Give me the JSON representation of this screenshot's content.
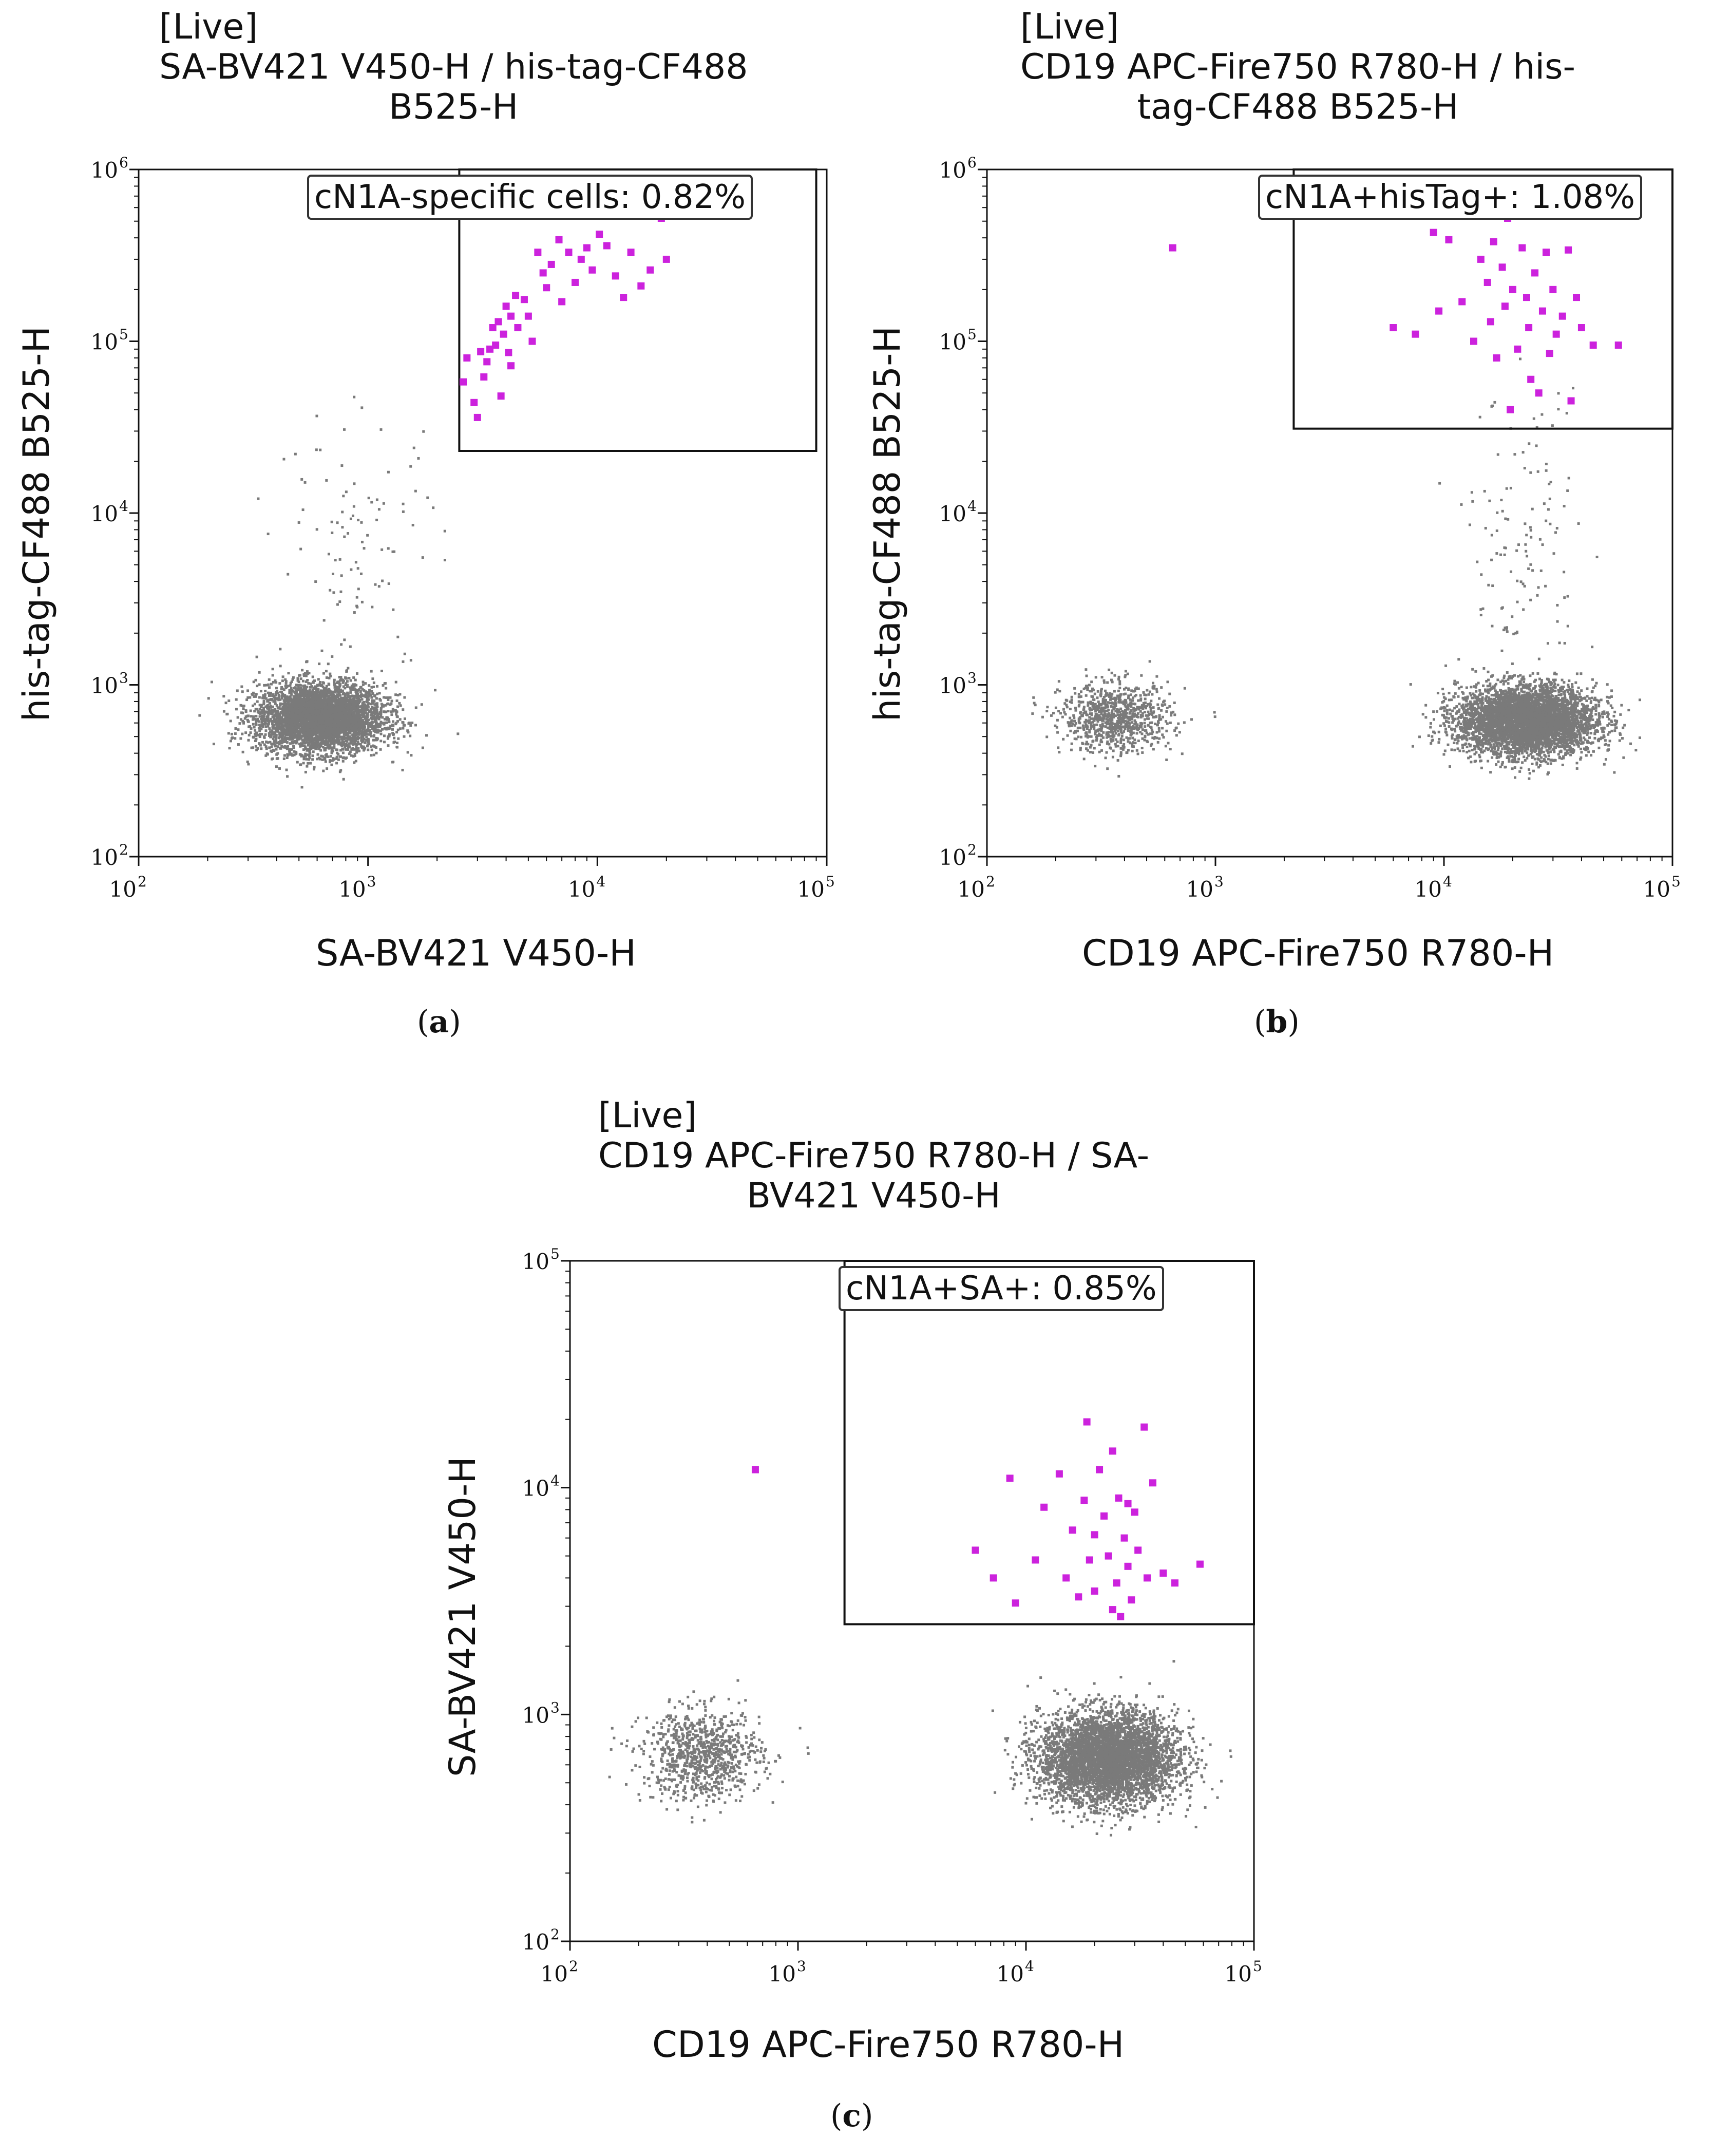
{
  "chart_data": [
    {
      "type": "scatter",
      "panel_label": "a",
      "title": [
        "[Live]",
        "SA-BV421 V450-H / his-tag-CF488",
        "B525-H"
      ],
      "xlabel": "SA-BV421 V450-H",
      "ylabel": "his-tag-CF488 B525-H",
      "x_scale": "log",
      "y_scale": "log",
      "xlim": [
        100,
        100000
      ],
      "ylim": [
        100,
        1000000
      ],
      "x_ticks": [
        "10",
        "10",
        "10",
        "10"
      ],
      "x_tick_exp": [
        "2",
        "3",
        "4",
        "5"
      ],
      "y_ticks": [
        "10",
        "10",
        "10",
        "10",
        "10"
      ],
      "y_tick_exp": [
        "2",
        "3",
        "4",
        "5",
        "6"
      ],
      "gate": {
        "label": "cN1A-specific cells: 0.82%",
        "x_range": [
          2500,
          90000
        ],
        "y_range": [
          23000,
          1000000
        ]
      },
      "colors": {
        "background_events": "#7a7a7a",
        "gated_events": "#cc22dd"
      },
      "populations": [
        {
          "center": [
            620,
            640
          ],
          "spread": [
            0.14,
            0.1
          ],
          "count": 4200
        },
        {
          "center": [
            900,
            6000
          ],
          "spread": [
            0.18,
            0.4
          ],
          "count": 110
        }
      ],
      "gated_points": [
        [
          2600,
          58000
        ],
        [
          2700,
          80000
        ],
        [
          2900,
          44000
        ],
        [
          3000,
          36000
        ],
        [
          3100,
          87000
        ],
        [
          3200,
          62000
        ],
        [
          3300,
          76000
        ],
        [
          3500,
          120000
        ],
        [
          3600,
          95000
        ],
        [
          3700,
          130000
        ],
        [
          3800,
          48000
        ],
        [
          3900,
          110000
        ],
        [
          4000,
          160000
        ],
        [
          4100,
          86000
        ],
        [
          4200,
          140000
        ],
        [
          4400,
          185000
        ],
        [
          4500,
          120000
        ],
        [
          4800,
          175000
        ],
        [
          5000,
          140000
        ],
        [
          5200,
          100000
        ],
        [
          5500,
          330000
        ],
        [
          5800,
          250000
        ],
        [
          6000,
          205000
        ],
        [
          6300,
          280000
        ],
        [
          6800,
          390000
        ],
        [
          7000,
          170000
        ],
        [
          7500,
          330000
        ],
        [
          8000,
          220000
        ],
        [
          8500,
          300000
        ],
        [
          9000,
          350000
        ],
        [
          9500,
          260000
        ],
        [
          10200,
          420000
        ],
        [
          11000,
          360000
        ],
        [
          12000,
          240000
        ],
        [
          13000,
          180000
        ],
        [
          14000,
          330000
        ],
        [
          15500,
          210000
        ],
        [
          17000,
          260000
        ],
        [
          19000,
          520000
        ],
        [
          20000,
          300000
        ],
        [
          4200,
          72000
        ],
        [
          3400,
          90000
        ]
      ]
    },
    {
      "type": "scatter",
      "panel_label": "b",
      "title": [
        "[Live]",
        "CD19 APC-Fire750 R780-H / his-",
        "tag-CF488 B525-H"
      ],
      "xlabel": "CD19 APC-Fire750 R780-H",
      "ylabel": "his-tag-CF488 B525-H",
      "x_scale": "log",
      "y_scale": "log",
      "xlim": [
        100,
        100000
      ],
      "ylim": [
        100,
        1000000
      ],
      "x_ticks": [
        "10",
        "10",
        "10",
        "10"
      ],
      "x_tick_exp": [
        "2",
        "3",
        "4",
        "5"
      ],
      "y_ticks": [
        "10",
        "10",
        "10",
        "10",
        "10"
      ],
      "y_tick_exp": [
        "2",
        "3",
        "4",
        "5",
        "6"
      ],
      "gate": {
        "label": "cN1A+hisTag+: 1.08%",
        "x_range": [
          2200,
          100000
        ],
        "y_range": [
          31000,
          1000000
        ]
      },
      "colors": {
        "background_events": "#7a7a7a",
        "gated_events": "#cc22dd"
      },
      "populations": [
        {
          "center": [
            370,
            640
          ],
          "spread": [
            0.12,
            0.1
          ],
          "count": 900
        },
        {
          "center": [
            23000,
            620
          ],
          "spread": [
            0.15,
            0.1
          ],
          "count": 4600
        },
        {
          "center": [
            22000,
            6000
          ],
          "spread": [
            0.12,
            0.45
          ],
          "count": 130
        }
      ],
      "gated_points": [
        [
          6000,
          120000
        ],
        [
          7500,
          110000
        ],
        [
          9000,
          430000
        ],
        [
          9500,
          150000
        ],
        [
          10500,
          390000
        ],
        [
          12000,
          170000
        ],
        [
          13500,
          100000
        ],
        [
          14500,
          300000
        ],
        [
          15500,
          220000
        ],
        [
          16000,
          130000
        ],
        [
          16500,
          380000
        ],
        [
          17000,
          80000
        ],
        [
          18000,
          270000
        ],
        [
          18500,
          160000
        ],
        [
          19000,
          520000
        ],
        [
          19500,
          40000
        ],
        [
          20000,
          200000
        ],
        [
          21000,
          90000
        ],
        [
          22000,
          350000
        ],
        [
          23000,
          180000
        ],
        [
          23500,
          120000
        ],
        [
          24000,
          60000
        ],
        [
          25000,
          250000
        ],
        [
          26000,
          50000
        ],
        [
          27000,
          150000
        ],
        [
          28000,
          330000
        ],
        [
          29000,
          85000
        ],
        [
          30000,
          200000
        ],
        [
          31000,
          110000
        ],
        [
          33000,
          140000
        ],
        [
          35000,
          340000
        ],
        [
          36000,
          45000
        ],
        [
          38000,
          180000
        ],
        [
          40000,
          120000
        ],
        [
          45000,
          95000
        ],
        [
          58000,
          95000
        ],
        [
          650,
          350000
        ]
      ]
    },
    {
      "type": "scatter",
      "panel_label": "c",
      "title": [
        "[Live]",
        "CD19 APC-Fire750 R780-H / SA-",
        "BV421 V450-H"
      ],
      "xlabel": "CD19 APC-Fire750 R780-H",
      "ylabel": "SA-BV421 V450-H",
      "x_scale": "log",
      "y_scale": "log",
      "xlim": [
        100,
        100000
      ],
      "ylim": [
        100,
        100000
      ],
      "x_ticks": [
        "10",
        "10",
        "10",
        "10"
      ],
      "x_tick_exp": [
        "2",
        "3",
        "4",
        "5"
      ],
      "y_ticks": [
        "10",
        "10",
        "10",
        "10"
      ],
      "y_tick_exp": [
        "2",
        "3",
        "4",
        "5"
      ],
      "gate": {
        "label": "cN1A+SA+: 0.85%",
        "x_range": [
          1600,
          100000
        ],
        "y_range": [
          2500,
          100000
        ]
      },
      "colors": {
        "background_events": "#7a7a7a",
        "gated_events": "#cc22dd"
      },
      "populations": [
        {
          "center": [
            380,
            660
          ],
          "spread": [
            0.13,
            0.1
          ],
          "count": 900
        },
        {
          "center": [
            23000,
            640
          ],
          "spread": [
            0.15,
            0.1
          ],
          "count": 4600
        }
      ],
      "gated_points": [
        [
          6000,
          5300
        ],
        [
          7200,
          4000
        ],
        [
          8500,
          11000
        ],
        [
          9000,
          3100
        ],
        [
          11000,
          4800
        ],
        [
          12000,
          8200
        ],
        [
          14000,
          11500
        ],
        [
          15000,
          4000
        ],
        [
          16000,
          6500
        ],
        [
          17000,
          3300
        ],
        [
          18000,
          8800
        ],
        [
          18500,
          19500
        ],
        [
          19000,
          4800
        ],
        [
          20000,
          3500
        ],
        [
          21000,
          12000
        ],
        [
          22000,
          7500
        ],
        [
          23000,
          5000
        ],
        [
          24000,
          14500
        ],
        [
          25000,
          3800
        ],
        [
          25500,
          9000
        ],
        [
          26000,
          2700
        ],
        [
          27000,
          6000
        ],
        [
          28000,
          4500
        ],
        [
          29000,
          3200
        ],
        [
          30000,
          7800
        ],
        [
          31000,
          5300
        ],
        [
          33000,
          18500
        ],
        [
          34000,
          4000
        ],
        [
          36000,
          10500
        ],
        [
          40000,
          4200
        ],
        [
          45000,
          3800
        ],
        [
          58000,
          4600
        ],
        [
          650,
          12000
        ],
        [
          24000,
          2900
        ],
        [
          20000,
          6200
        ],
        [
          28000,
          8500
        ]
      ]
    }
  ]
}
